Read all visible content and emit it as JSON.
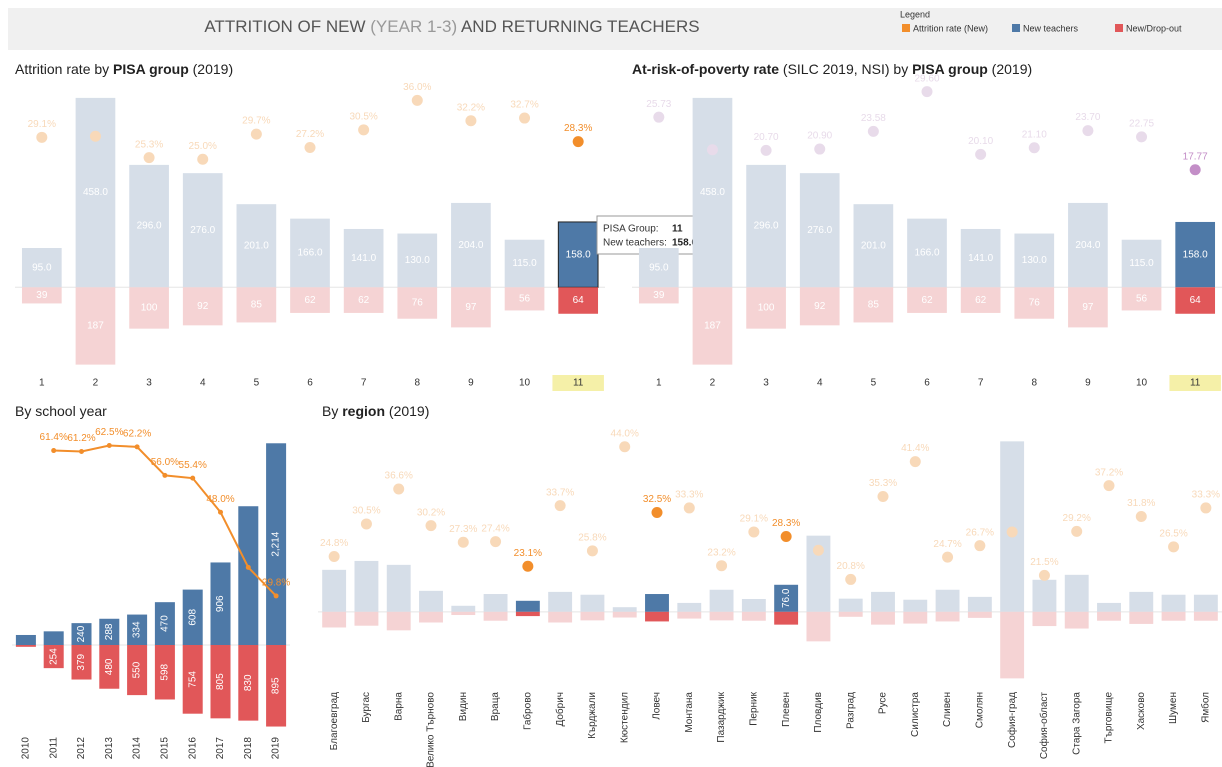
{
  "header": {
    "title": [
      "ATTRITION OF NEW ",
      "(YEAR 1-3)",
      " AND RETURNING TEACHERS"
    ],
    "title_light": [
      1
    ]
  },
  "legend": {
    "title": "Legend",
    "items": [
      {
        "name": "Attrition rate (New)",
        "color": "#f28e2b"
      },
      {
        "name": "New teachers",
        "color": "#4e79a7"
      },
      {
        "name": "New/Drop-out",
        "color": "#e15759"
      }
    ]
  },
  "chart_data": [
    {
      "type": "bar-dot",
      "title": [
        "Attrition rate by ",
        "PISA group",
        "  (2019)"
      ],
      "title_bold": [
        1
      ],
      "categories": [
        "1",
        "2",
        "3",
        "4",
        "5",
        "6",
        "7",
        "8",
        "9",
        "10",
        "11"
      ],
      "highlight": [
        10
      ],
      "label_highlight": [
        10
      ],
      "ylim": [
        -200,
        465
      ],
      "y2lim": [
        20,
        40
      ],
      "series": [
        {
          "color": "#4e79a7",
          "faded": "#d6dee8",
          "values": [
            95,
            458,
            296,
            276,
            201,
            166,
            141,
            130,
            204,
            115,
            158
          ],
          "value_labels": [
            "95.0",
            "458.0",
            "296.0",
            "276.0",
            "201.0",
            "166.0",
            "141.0",
            "130.0",
            "204.0",
            "115.0",
            "158.0"
          ]
        },
        {
          "color": "#e15759",
          "faded": "#f5d3d4",
          "values": [
            39,
            187,
            100,
            92,
            85,
            62,
            62,
            76,
            97,
            56,
            64
          ],
          "value_labels": [
            "39",
            "187",
            "100",
            "92",
            "85",
            "62",
            "62",
            "76",
            "97",
            "56",
            "64"
          ]
        },
        {
          "axis": "y2",
          "color": "#f28e2b",
          "faded": "#f8d9b9",
          "values": [
            29.1,
            29.3,
            25.3,
            25.0,
            29.7,
            27.2,
            30.5,
            36.0,
            32.2,
            32.7,
            28.3
          ],
          "value_labels": [
            "29.1%",
            null,
            "25.3%",
            "25.0%",
            "29.7%",
            "27.2%",
            "30.5%",
            "36.0%",
            "32.2%",
            "32.7%",
            "28.3%"
          ]
        }
      ],
      "tooltip": [
        [
          "PISA Group:",
          "11"
        ],
        [
          "New teachers:",
          "158.0"
        ]
      ]
    },
    {
      "type": "bar-dot",
      "title": [
        "At-risk-of-poverty rate",
        " (SILC 2019, NSI) by ",
        "PISA group",
        "  (2019)"
      ],
      "title_bold": [
        0,
        2
      ],
      "categories": [
        "1",
        "2",
        "3",
        "4",
        "5",
        "6",
        "7",
        "8",
        "9",
        "10",
        "11"
      ],
      "highlight": [
        10
      ],
      "label_highlight": [
        10
      ],
      "ylim": [
        -200,
        465
      ],
      "y2lim": [
        15,
        30
      ],
      "series": [
        {
          "color": "#4e79a7",
          "faded": "#d6dee8",
          "values": [
            95,
            458,
            296,
            276,
            201,
            166,
            141,
            130,
            204,
            115,
            158
          ],
          "value_labels": [
            "95.0",
            "458.0",
            "296.0",
            "276.0",
            "201.0",
            "166.0",
            "141.0",
            "130.0",
            "204.0",
            "115.0",
            "158.0"
          ]
        },
        {
          "color": "#e15759",
          "faded": "#f5d3d4",
          "values": [
            39,
            187,
            100,
            92,
            85,
            62,
            62,
            76,
            97,
            56,
            64
          ],
          "value_labels": [
            "39",
            "187",
            "100",
            "92",
            "85",
            "62",
            "62",
            "76",
            "97",
            "56",
            "64"
          ]
        },
        {
          "axis": "y2",
          "color": "#c38ec7",
          "faded": "#e8dbea",
          "values": [
            25.73,
            20.8,
            20.7,
            20.9,
            23.58,
            29.6,
            20.1,
            21.1,
            23.7,
            22.75,
            17.77
          ],
          "value_labels": [
            "25.73",
            null,
            "20.70",
            "20.90",
            "23.58",
            "29.60",
            "20.10",
            "21.10",
            "23.70",
            "22.75",
            "17.77"
          ]
        }
      ]
    },
    {
      "type": "bar-line",
      "title": [
        "By school year"
      ],
      "title_bold": [],
      "categories": [
        "2010",
        "2011",
        "2012",
        "2013",
        "2014",
        "2015",
        "2016",
        "2017",
        "2018",
        "2019"
      ],
      "ylim": [
        -900,
        2250
      ],
      "y2lim": [
        25,
        65
      ],
      "series": [
        {
          "color": "#4e79a7",
          "values": [
            110,
            150,
            240,
            288,
            334,
            470,
            608,
            906,
            1523,
            2214
          ],
          "value_labels": [
            null,
            null,
            "240",
            "288",
            "334",
            "470",
            "608",
            "906",
            null,
            "2,214"
          ]
        },
        {
          "color": "#e15759",
          "values": [
            20,
            254,
            379,
            480,
            550,
            598,
            754,
            805,
            830,
            895
          ],
          "value_labels": [
            null,
            "254",
            "379",
            "480",
            "550",
            "598",
            "754",
            "805",
            "830",
            "895"
          ]
        },
        {
          "axis": "y2",
          "color": "#f28e2b",
          "values": [
            null,
            61.4,
            61.2,
            62.5,
            62.2,
            56.0,
            55.4,
            48.0,
            36.0,
            29.8
          ],
          "value_labels": [
            null,
            "61.4%",
            "61.2%",
            "62.5%",
            "62.2%",
            "56.0%",
            "55.4%",
            "48.0%",
            null,
            "29.8%"
          ]
        }
      ]
    },
    {
      "type": "bar-dot",
      "title": [
        "By ",
        "region",
        " (2019)"
      ],
      "title_bold": [
        1
      ],
      "categories": [
        "Благоевград",
        "Бургас",
        "Варна",
        "Велико Търново",
        "Видин",
        "Враца",
        "Габрово",
        "Добрич",
        "Кърджали",
        "Кюстендил",
        "Ловеч",
        "Монтана",
        "Пазарджик",
        "Перник",
        "Плевен",
        "Пловдив",
        "Разград",
        "Русе",
        "Силистра",
        "Сливен",
        "Смолян",
        "София-град",
        "София-област",
        "Стара Загора",
        "Търговище",
        "Хасково",
        "Шумен",
        "Ямбол"
      ],
      "highlight": [
        6,
        10,
        14
      ],
      "ylim": [
        -200,
        480
      ],
      "y2lim": [
        20,
        45
      ],
      "series": [
        {
          "color": "#4e79a7",
          "faded": "#d6dee8",
          "values": [
            118,
            143,
            132,
            59,
            17,
            50,
            31,
            56,
            48,
            13,
            50,
            25,
            62,
            36,
            76,
            214,
            37,
            56,
            34,
            62,
            42,
            479,
            90,
            104,
            25,
            56,
            48,
            48
          ],
          "value_labels": [
            null,
            null,
            null,
            null,
            null,
            null,
            null,
            null,
            null,
            null,
            null,
            null,
            null,
            null,
            "76.0",
            null,
            null,
            null,
            null,
            null,
            null,
            null,
            null,
            null,
            null,
            null,
            null,
            null
          ]
        },
        {
          "color": "#e15759",
          "faded": "#f5d3d4",
          "values": [
            44,
            39,
            52,
            30,
            9,
            25,
            12,
            30,
            24,
            16,
            27,
            19,
            24,
            25,
            36,
            83,
            14,
            36,
            33,
            27,
            17,
            187,
            40,
            47,
            25,
            34,
            25,
            25
          ]
        },
        {
          "axis": "y2",
          "color": "#f28e2b",
          "faded": "#f8d9b9",
          "values": [
            24.8,
            30.5,
            36.6,
            30.2,
            27.3,
            27.4,
            23.1,
            33.7,
            25.8,
            44.0,
            32.5,
            33.3,
            23.2,
            29.1,
            28.3,
            25.9,
            20.8,
            35.3,
            41.4,
            24.7,
            26.7,
            29.1,
            21.5,
            29.2,
            37.2,
            31.8,
            26.5,
            33.3
          ],
          "value_labels": [
            "24.8%",
            "30.5%",
            "36.6%",
            "30.2%",
            "27.3%",
            "27.4%",
            "23.1%",
            "33.7%",
            "25.8%",
            "44.0%",
            "32.5%",
            "33.3%",
            "23.2%",
            "29.1%",
            "28.3%",
            null,
            "20.8%",
            "35.3%",
            "41.4%",
            "24.7%",
            "26.7%",
            null,
            "21.5%",
            "29.2%",
            "37.2%",
            "31.8%",
            "26.5%",
            "33.3%"
          ]
        }
      ]
    }
  ]
}
